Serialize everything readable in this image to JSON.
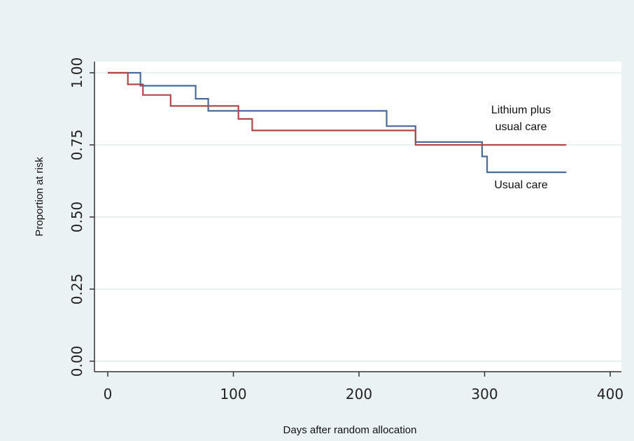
{
  "chart_data": {
    "type": "line",
    "step": true,
    "xlabel": "Days after random allocation",
    "ylabel": "Proportion at risk",
    "xlim": [
      0,
      400
    ],
    "ylim": [
      0,
      1
    ],
    "xticks": [
      0,
      100,
      200,
      300,
      400
    ],
    "xtick_labels": [
      "0",
      "100",
      "200",
      "300",
      "400"
    ],
    "yticks": [
      0,
      0.25,
      0.5,
      0.75,
      1.0
    ],
    "ytick_labels": [
      "0.00",
      "0.25",
      "0.50",
      "0.75",
      "1.00"
    ],
    "grid": "horizontal",
    "series": [
      {
        "color": "#4a6a9a",
        "x": [
          0,
          26,
          26,
          70,
          70,
          80,
          80,
          222,
          222,
          245,
          245,
          298,
          298,
          302,
          302,
          365
        ],
        "y": [
          1.0,
          1.0,
          0.955,
          0.955,
          0.91,
          0.91,
          0.868,
          0.868,
          0.815,
          0.815,
          0.76,
          0.76,
          0.71,
          0.71,
          0.655,
          0.655
        ]
      },
      {
        "color": "#b04848",
        "x": [
          0,
          16,
          16,
          28,
          28,
          50,
          50,
          104,
          104,
          115,
          115,
          245,
          245,
          365
        ],
        "y": [
          1.0,
          1.0,
          0.96,
          0.96,
          0.923,
          0.923,
          0.885,
          0.885,
          0.84,
          0.84,
          0.8,
          0.8,
          0.75,
          0.75
        ]
      }
    ],
    "annotations": [
      {
        "lines": [
          "Lithium plus",
          "usual care"
        ],
        "x": 329,
        "y": 0.83
      },
      {
        "lines": [
          "Usual care"
        ],
        "x": 329,
        "y": 0.6
      }
    ]
  }
}
